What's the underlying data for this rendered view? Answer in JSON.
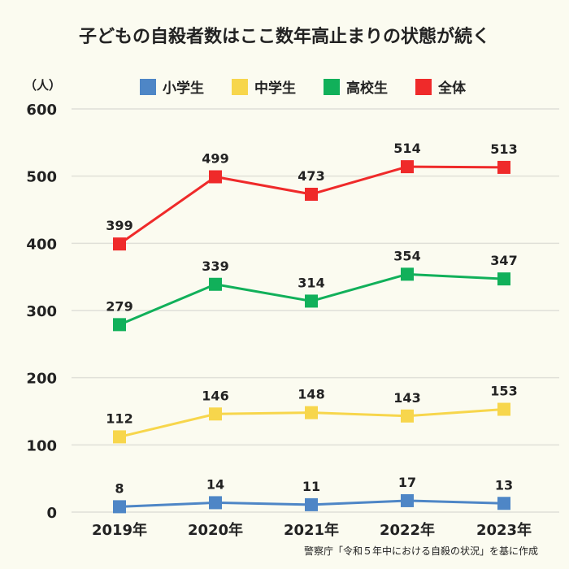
{
  "chart_data": {
    "type": "line",
    "title": "子どもの自殺者数はここ数年高止まりの状態が続く",
    "ylabel": "（人）",
    "xlabel": "",
    "categories": [
      "2019年",
      "2020年",
      "2021年",
      "2022年",
      "2023年"
    ],
    "ylim": [
      0,
      600
    ],
    "yticks": [
      "0",
      "100",
      "200",
      "300",
      "400",
      "500",
      "600"
    ],
    "grid": true,
    "legend": "top",
    "series": [
      {
        "name": "小学生",
        "color": "#4e86c6",
        "values": [
          8,
          14,
          11,
          17,
          13
        ]
      },
      {
        "name": "中学生",
        "color": "#f7d64c",
        "values": [
          112,
          146,
          148,
          143,
          153
        ]
      },
      {
        "name": "高校生",
        "color": "#11b05a",
        "values": [
          279,
          339,
          314,
          354,
          347
        ]
      },
      {
        "name": "全体",
        "color": "#ef2a2a",
        "values": [
          399,
          499,
          473,
          514,
          513
        ]
      }
    ],
    "source": "警察庁「令和５年中における自殺の状況」を基に作成"
  }
}
